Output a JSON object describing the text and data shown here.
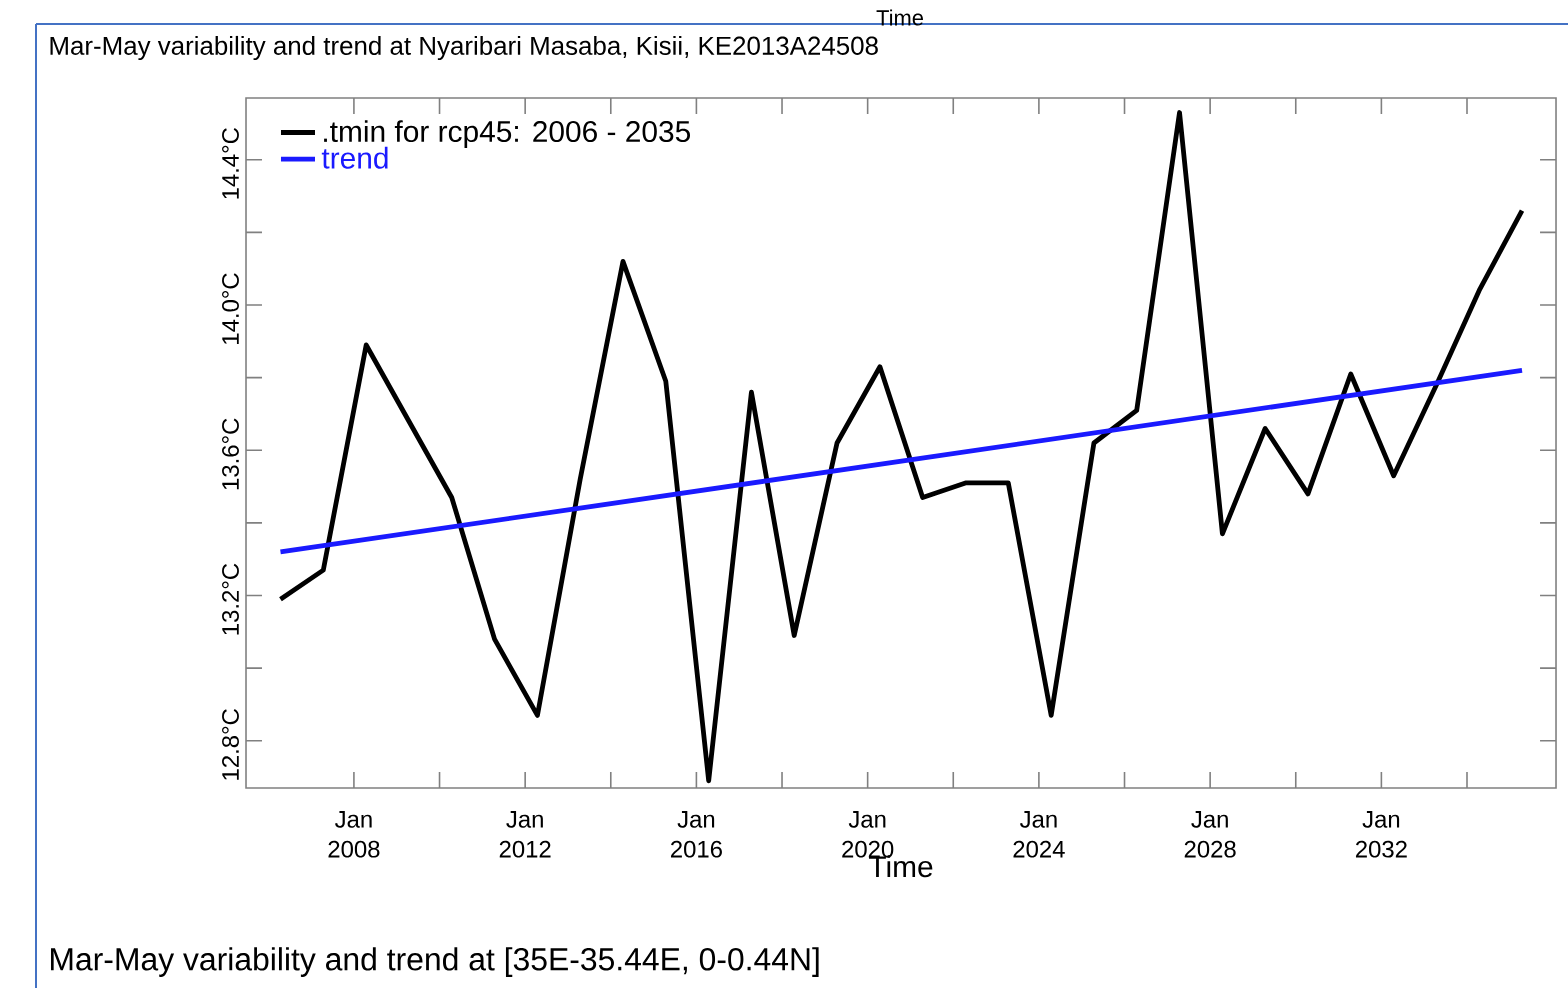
{
  "chart_data": {
    "type": "line",
    "title": "Mar-May variability and trend at Nyaribari Masaba, Kisii, KE2013A24508",
    "xlabel": "Time",
    "x2label": "Time",
    "annotations": [
      "Mar-May variability and trend at [35E-35.44E, 0-0.44N]"
    ],
    "x": [
      "2006-04-15",
      "2007-04-15",
      "2008-04-15",
      "2009-04-15",
      "2010-04-15",
      "2011-04-15",
      "2012-04-15",
      "2013-04-15",
      "2014-04-15",
      "2015-04-15",
      "2016-04-15",
      "2017-04-15",
      "2018-04-15",
      "2019-04-15",
      "2020-04-15",
      "2021-04-15",
      "2022-04-15",
      "2023-04-15",
      "2024-04-15",
      "2025-04-15",
      "2026-04-15",
      "2027-04-15",
      "2028-04-15",
      "2029-04-15",
      "2030-04-15",
      "2031-04-15",
      "2032-04-15",
      "2033-04-15",
      "2034-04-15",
      "2035-04-15"
    ],
    "series": [
      {
        "name": ".tmin for rcp45: 2006 - 2035",
        "color": "#000000",
        "values": [
          13.19,
          13.27,
          13.89,
          13.68,
          13.47,
          13.08,
          12.87,
          13.52,
          14.12,
          13.79,
          12.69,
          13.76,
          13.09,
          13.62,
          13.83,
          13.47,
          13.51,
          13.51,
          12.87,
          13.62,
          13.71,
          14.53,
          13.37,
          13.66,
          13.48,
          13.81,
          13.53,
          13.78,
          14.04,
          14.26
        ]
      },
      {
        "name": "trend",
        "color": "#1a1aff",
        "x": [
          "2006-04-15",
          "2035-04-15"
        ],
        "values": [
          13.32,
          13.82
        ]
      }
    ],
    "xlim": [
      "2005-06-25",
      "2036-01-30"
    ],
    "xticks": [
      {
        "value": "2008-01-01",
        "label": "Jan 2008"
      },
      {
        "value": "2010-01-01",
        "label": null
      },
      {
        "value": "2012-01-01",
        "label": "Jan 2012"
      },
      {
        "value": "2014-01-01",
        "label": null
      },
      {
        "value": "2016-01-01",
        "label": "Jan 2016"
      },
      {
        "value": "2018-01-01",
        "label": null
      },
      {
        "value": "2020-01-01",
        "label": "Jan 2020"
      },
      {
        "value": "2022-01-01",
        "label": null
      },
      {
        "value": "2024-01-01",
        "label": "Jan 2024"
      },
      {
        "value": "2026-01-01",
        "label": null
      },
      {
        "value": "2028-01-01",
        "label": "Jan 2028"
      },
      {
        "value": "2030-01-01",
        "label": null
      },
      {
        "value": "2032-01-01",
        "label": "Jan 2032"
      },
      {
        "value": "2034-01-01",
        "label": null
      }
    ],
    "ylim": [
      12.67,
      14.57
    ],
    "yticks": [
      {
        "value": 12.8,
        "label": "12.8°C"
      },
      {
        "value": 13.0,
        "label": null
      },
      {
        "value": 13.2,
        "label": "13.2°C"
      },
      {
        "value": 13.4,
        "label": null
      },
      {
        "value": 13.6,
        "label": "13.6°C"
      },
      {
        "value": 13.8,
        "label": null
      },
      {
        "value": 14.0,
        "label": "14.0°C"
      },
      {
        "value": 14.2,
        "label": null
      },
      {
        "value": 14.4,
        "label": "14.4°C"
      }
    ],
    "legend": "top left",
    "line_style": "solid"
  }
}
